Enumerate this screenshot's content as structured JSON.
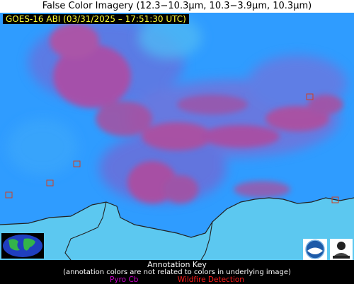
{
  "title": "False Color Imagery (12.3−10.3µm, 10.3−3.9µm, 10.3µm)",
  "timestamp": "GOES-16 ABI (03/31/2025 – 17:51:30 UTC)",
  "annotation_key": {
    "title": "Annotation Key",
    "subtitle": "(annotation colors are not related to colors in underlying image)",
    "items": [
      {
        "label": "Pyro Cb",
        "color": "#cc00cc"
      },
      {
        "label": "Wildfire Detection",
        "color": "#ff1a1a"
      }
    ]
  },
  "colors": {
    "sky_blue": "#2f9cff",
    "cyan_region": "#5cc8f0",
    "pink_cloud": "#c04a9a",
    "violet_haze": "#7b6fd8",
    "detection_box": "#d04020",
    "coastline": "#222222"
  },
  "icons": [
    "globe-logo-icon",
    "noaa-logo-icon",
    "cimss-logo-icon"
  ]
}
